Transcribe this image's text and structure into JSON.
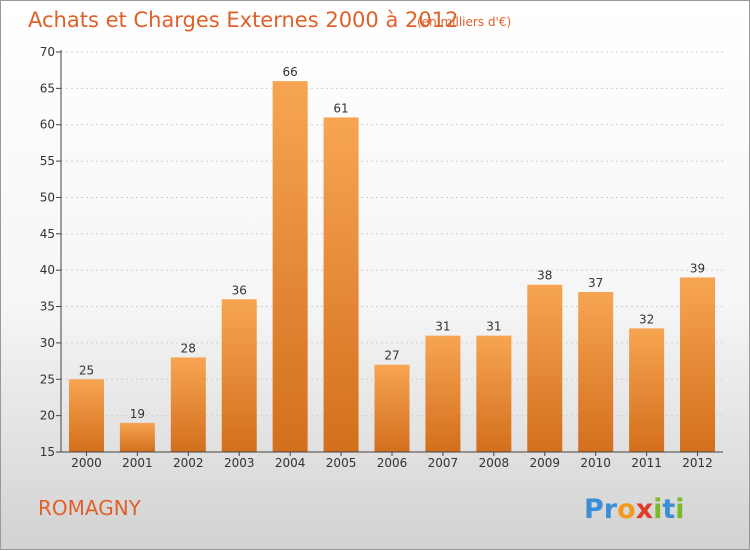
{
  "chart_data": {
    "type": "bar",
    "title": "Achats et Charges Externes 2000 à 2012",
    "subtitle": "(en milliers d'€)",
    "categories": [
      "2000",
      "2001",
      "2002",
      "2003",
      "2004",
      "2005",
      "2006",
      "2007",
      "2008",
      "2009",
      "2010",
      "2011",
      "2012"
    ],
    "values": [
      25,
      19,
      28,
      36,
      66,
      61,
      27,
      31,
      31,
      38,
      37,
      32,
      39
    ],
    "ylim": [
      15,
      70
    ],
    "yticks": [
      15,
      20,
      25,
      30,
      35,
      40,
      45,
      50,
      55,
      60,
      65,
      70
    ],
    "grid": true,
    "colors": {
      "bar_light": "#f7a552",
      "bar_dark": "#d36f1c",
      "accent": "#e0602a"
    }
  },
  "footer": {
    "commune": "ROMAGNY"
  },
  "logo": {
    "letters": [
      {
        "ch": "P",
        "color": "#3a8fd6"
      },
      {
        "ch": "r",
        "color": "#3a8fd6"
      },
      {
        "ch": "o",
        "color": "#f29a1f"
      },
      {
        "ch": "x",
        "color": "#e23b2c"
      },
      {
        "ch": "i",
        "color": "#7ab927"
      },
      {
        "ch": "t",
        "color": "#3a8fd6"
      },
      {
        "ch": "i",
        "color": "#7ab927"
      }
    ]
  }
}
